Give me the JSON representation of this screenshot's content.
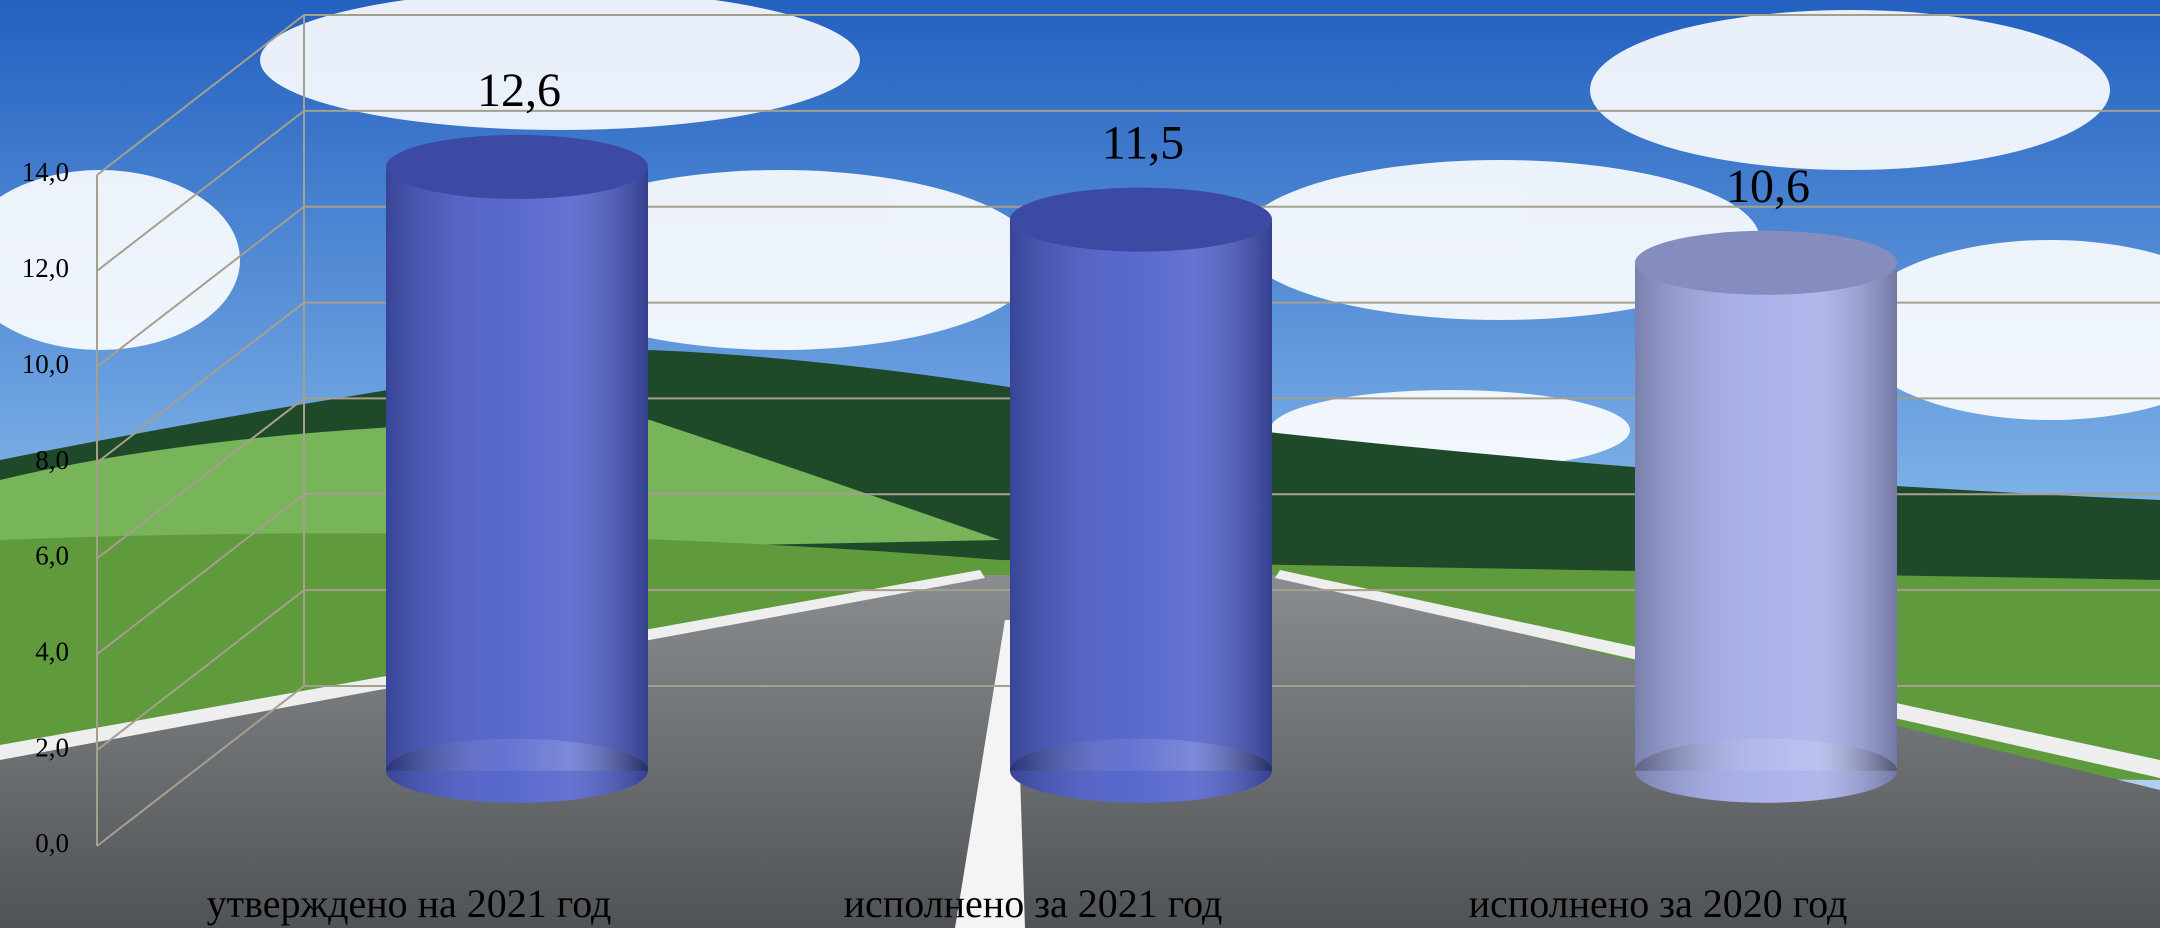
{
  "chart_data": {
    "type": "cylinder",
    "categories": [
      "утверждено на 2021 год",
      "исполнено за 2021 год",
      "исполнено за 2020 год"
    ],
    "values": [
      12.6,
      11.5,
      10.6
    ],
    "value_labels": [
      "12,6",
      "11,5",
      "10,6"
    ],
    "colors": [
      "#4a5bc9",
      "#4a5bc9",
      "#a3abe8"
    ],
    "ylim": [
      0,
      14
    ],
    "yticks": [
      {
        "value": 0,
        "label": "0,0"
      },
      {
        "value": 2,
        "label": "2,0"
      },
      {
        "value": 4,
        "label": "4,0"
      },
      {
        "value": 6,
        "label": "6,0"
      },
      {
        "value": 8,
        "label": "8,0"
      },
      {
        "value": 10,
        "label": "10,0"
      },
      {
        "value": 12,
        "label": "12,0"
      },
      {
        "value": 14,
        "label": "14,0"
      }
    ],
    "grid": true
  }
}
